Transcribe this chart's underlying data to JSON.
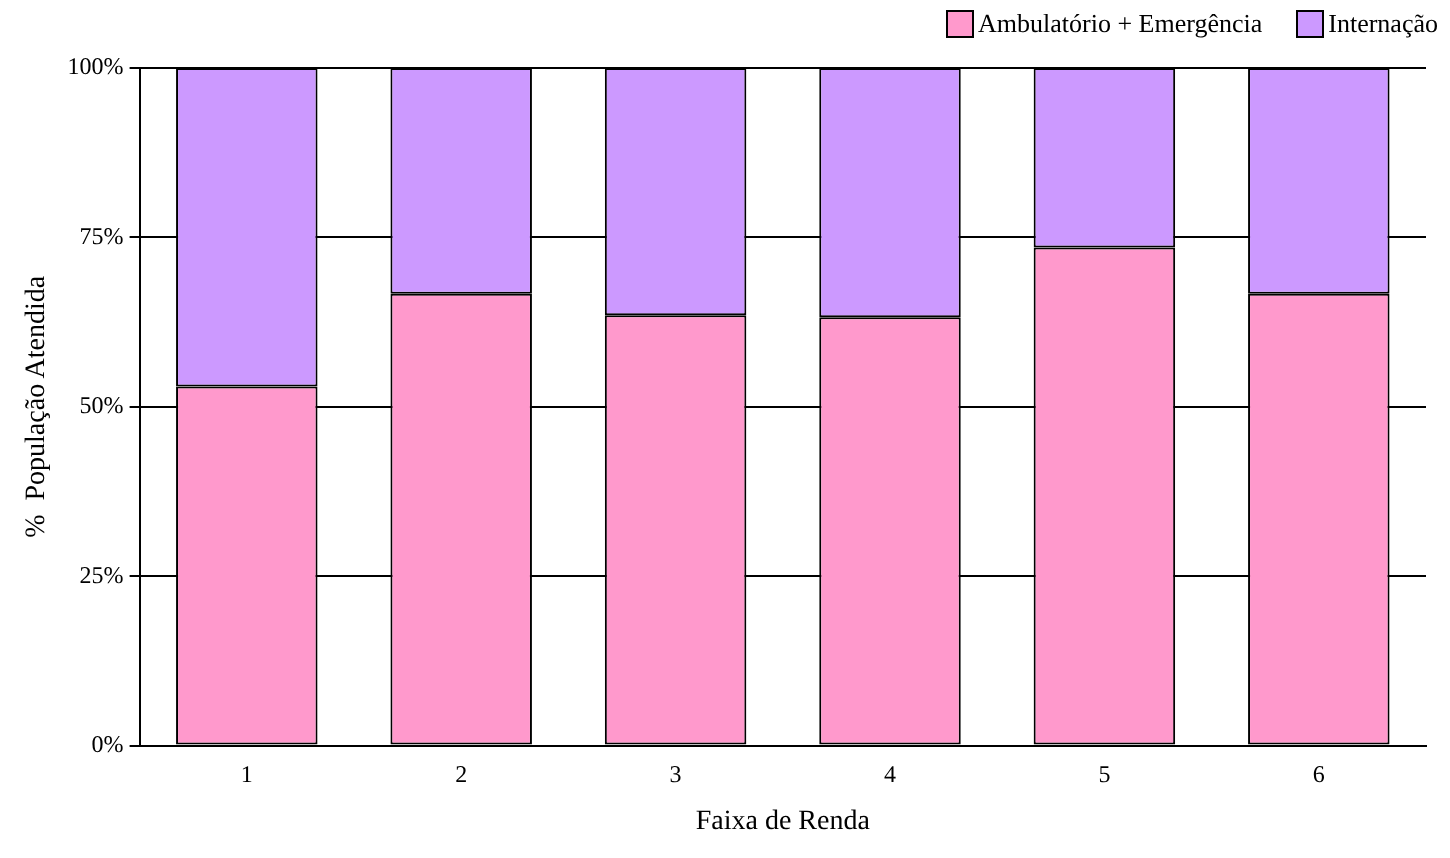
{
  "chart_data": {
    "type": "bar",
    "xlabel": "Faixa de Renda",
    "ylabel": "%  População Atendida",
    "categories": [
      "1",
      "2",
      "3",
      "4",
      "5",
      "6"
    ],
    "stacked": true,
    "series": [
      {
        "name": "Ambulatório + Emergência",
        "color": "#ff99cc",
        "values": [
          53,
          66.7,
          63.5,
          63.2,
          73.5,
          66.7
        ]
      },
      {
        "name": "Internação",
        "color": "#cc99ff",
        "values": [
          47,
          33.3,
          36.5,
          36.8,
          26.5,
          33.3
        ]
      }
    ],
    "ylim": [
      0,
      100
    ],
    "yticks": [
      {
        "value": 0,
        "label": "0%"
      },
      {
        "value": 25,
        "label": "25%"
      },
      {
        "value": 50,
        "label": "50%"
      },
      {
        "value": 75,
        "label": "75%"
      },
      {
        "value": 100,
        "label": "100%"
      }
    ],
    "grid": "y",
    "legend": "top right"
  }
}
